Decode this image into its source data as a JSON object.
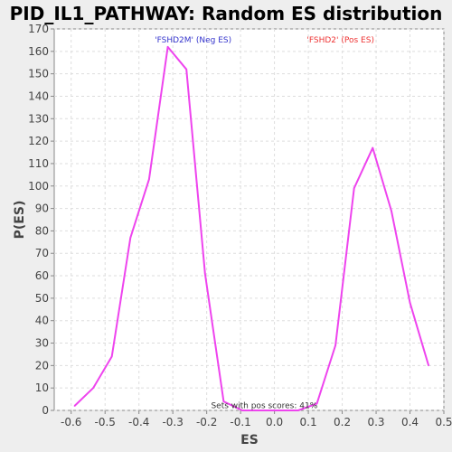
{
  "chart_data": {
    "type": "line",
    "title": "PID_IL1_PATHWAY: Random ES distribution",
    "xlabel": "ES",
    "ylabel": "P(ES)",
    "xlim": [
      -0.65,
      0.5
    ],
    "ylim": [
      0,
      170
    ],
    "x_ticks": [
      -0.6,
      -0.5,
      -0.4,
      -0.3,
      -0.2,
      -0.1,
      0.0,
      0.1,
      0.2,
      0.3,
      0.4,
      0.5
    ],
    "x_tick_labels": [
      "-0.6",
      "-0.5",
      "-0.4",
      "-0.3",
      "-0.2",
      "-0.1",
      "0.0",
      "0.1",
      "0.2",
      "0.3",
      "0.4",
      "0.5"
    ],
    "y_ticks": [
      0,
      10,
      20,
      30,
      40,
      50,
      60,
      70,
      80,
      90,
      100,
      110,
      120,
      130,
      140,
      150,
      160,
      170
    ],
    "y_tick_labels": [
      "0",
      "10",
      "20",
      "30",
      "40",
      "50",
      "60",
      "70",
      "80",
      "90",
      "100",
      "110",
      "120",
      "130",
      "140",
      "150",
      "160",
      "170"
    ],
    "grid": true,
    "series": [
      {
        "color": "#ee44ee",
        "x": [
          -0.59,
          -0.535,
          -0.48,
          -0.425,
          -0.37,
          -0.315,
          -0.26,
          -0.205,
          -0.15,
          -0.095,
          -0.04,
          0.015,
          0.07,
          0.125,
          0.18,
          0.235,
          0.29,
          0.345,
          0.4,
          0.455
        ],
        "y": [
          2,
          10,
          24,
          77,
          103,
          162,
          152,
          61,
          4,
          0,
          0,
          0,
          0,
          3,
          29,
          99,
          117,
          89,
          48,
          20
        ]
      }
    ],
    "annotations": [
      {
        "text": "'FSHD2M' (Neg ES)",
        "x": -0.24,
        "y": 164,
        "color": "#3333cc"
      },
      {
        "text": "'FSHD2' (Pos ES)",
        "x": 0.195,
        "y": 164,
        "color": "#ee3333"
      },
      {
        "text": "Sets with pos scores: 41%",
        "x": -0.03,
        "y": 1,
        "color": "#333333"
      }
    ],
    "colors": {
      "plot_background": "#ffffff",
      "page_background": "#eeeeee",
      "grid": "#dddddd",
      "axis": "#888888"
    }
  }
}
